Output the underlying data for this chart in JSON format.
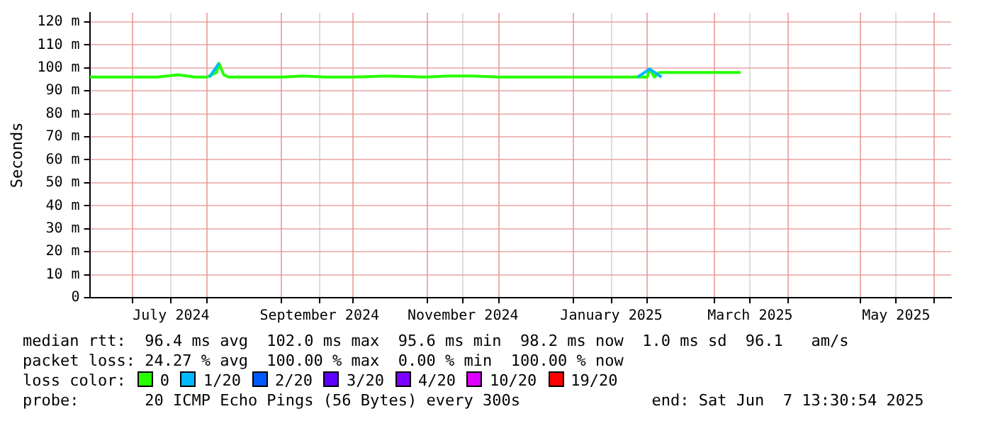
{
  "chart_data": {
    "type": "line",
    "ylabel": "Seconds",
    "xlim": [
      "2024-06-13",
      "2025-06-08"
    ],
    "xticks": [
      {
        "value": "2024-07-01",
        "label": null
      },
      {
        "value": "2024-07-17",
        "label": "July 2024"
      },
      {
        "value": "2024-08-01",
        "label": null
      },
      {
        "value": "2024-09-01",
        "label": null
      },
      {
        "value": "2024-09-17",
        "label": "September 2024"
      },
      {
        "value": "2024-10-01",
        "label": null
      },
      {
        "value": "2024-11-01",
        "label": null
      },
      {
        "value": "2024-11-16",
        "label": "November 2024"
      },
      {
        "value": "2024-12-01",
        "label": null
      },
      {
        "value": "2025-01-01",
        "label": null
      },
      {
        "value": "2025-01-17",
        "label": "January 2025"
      },
      {
        "value": "2025-02-01",
        "label": null
      },
      {
        "value": "2025-03-01",
        "label": null
      },
      {
        "value": "2025-03-16",
        "label": "March 2025"
      },
      {
        "value": "2025-04-01",
        "label": null
      },
      {
        "value": "2025-05-01",
        "label": null
      },
      {
        "value": "2025-05-16",
        "label": "May 2025"
      },
      {
        "value": "2025-06-01",
        "label": null
      }
    ],
    "ylim": [
      0,
      124
    ],
    "yticks": [
      0,
      {
        "value": 10,
        "label": "10 m"
      },
      {
        "value": 20,
        "label": "20 m"
      },
      {
        "value": 30,
        "label": "30 m"
      },
      {
        "value": 40,
        "label": "40 m"
      },
      {
        "value": 50,
        "label": "50 m"
      },
      {
        "value": 60,
        "label": "60 m"
      },
      {
        "value": 70,
        "label": "70 m"
      },
      {
        "value": 80,
        "label": "80 m"
      },
      {
        "value": 90,
        "label": "90 m"
      },
      {
        "value": 100,
        "label": "100 m"
      },
      {
        "value": 110,
        "label": "110 m"
      },
      {
        "value": 120,
        "label": "120 m"
      }
    ],
    "grid": true,
    "legend": "bottom",
    "legend_title": "loss color:",
    "marker": "none",
    "line_style": "solid",
    "series": [
      {
        "name": "0",
        "color": "#26ff00",
        "x": [
          "2024-06-13",
          "2024-06-20",
          "2024-06-27",
          "2024-07-04",
          "2024-07-11",
          "2024-07-20",
          "2024-07-27",
          "2024-08-01",
          "2024-08-05",
          "2024-08-06",
          "2024-08-08",
          "2024-08-10",
          "2024-08-20",
          "2024-09-01",
          "2024-09-10",
          "2024-09-20",
          "2024-10-01",
          "2024-10-15",
          "2024-10-31",
          "2024-11-10",
          "2024-11-20",
          "2024-12-01",
          "2024-12-15",
          "2025-01-01",
          "2025-01-15",
          "2025-01-25",
          "2025-02-01",
          "2025-02-02",
          "2025-02-04",
          "2025-02-06",
          "2025-02-15",
          "2025-03-01",
          "2025-03-12"
        ],
        "values": [
          96,
          96,
          96,
          96,
          96,
          97,
          96,
          96,
          98,
          102,
          97,
          96,
          96,
          96,
          96.5,
          96,
          96,
          96.5,
          96,
          96.5,
          96.5,
          96,
          96,
          96,
          96,
          96,
          96,
          99.5,
          96,
          98,
          98,
          98,
          98
        ]
      },
      {
        "name": "1/20",
        "color": "#00b8ff",
        "x": [
          "2024-08-02",
          "2024-08-06",
          "2024-08-07",
          "2025-01-28",
          "2025-02-02",
          "2025-02-07"
        ],
        "values": [
          96,
          102,
          null,
          96,
          99.5,
          96
        ]
      },
      {
        "name": "2/20",
        "color": "#0059ff"
      },
      {
        "name": "3/20",
        "color": "#5e00ff"
      },
      {
        "name": "4/20",
        "color": "#7e00ff"
      },
      {
        "name": "10/20",
        "color": "#dd00ff"
      },
      {
        "name": "19/20",
        "color": "#ff0000"
      }
    ],
    "annotations": [
      "median rtt:  96.4 ms avg  102.0 ms max  95.6 ms min  98.2 ms now  1.0 ms sd  96.1   am/s",
      "packet loss: 24.27 % avg  100.00 % max  0.00 % min  100.00 % now",
      "probe:       20 ICMP Echo Pings (56 Bytes) every 300s              end: Sat Jun  7 13:30:54 2025"
    ]
  }
}
